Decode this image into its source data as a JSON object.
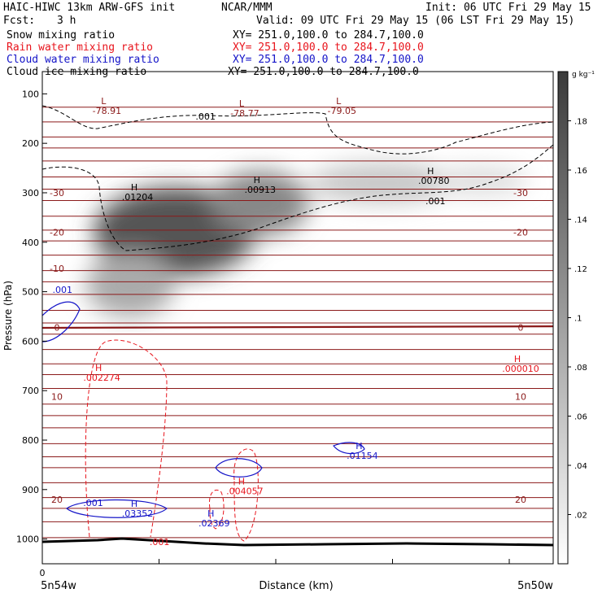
{
  "header": {
    "title": "HAIC-HIWC 13km ARW-GFS init",
    "source": "NCAR/MMM",
    "init": "Init: 06 UTC Fri 29 May 15",
    "fcst_label": "Fcst:",
    "fcst_value": "3 h",
    "valid": "Valid: 09 UTC Fri 29 May 15 (06 LST Fri 29 May 15)"
  },
  "fields": [
    {
      "name": "Snow mixing ratio",
      "xy": "XY= 251.0,100.0 to 284.7,100.0",
      "color": "#000000"
    },
    {
      "name": "Rain water mixing ratio",
      "xy": "XY= 251.0,100.0 to 284.7,100.0",
      "color": "#e8141c"
    },
    {
      "name": "Cloud water mixing ratio",
      "xy": "XY= 251.0,100.0 to 284.7,100.0",
      "color": "#1414c8"
    },
    {
      "name": "Cloud ice mixing ratio",
      "xy": "XY= 251.0,100.0 to 284.7,100.0",
      "color": "#000000"
    }
  ],
  "chart_data": {
    "type": "heatmap",
    "xlabel": "Distance (km)",
    "ylabel": "Pressure (hPa)",
    "x_tick_start": "0",
    "x_left_label": "5n54w",
    "x_right_label": "5n50w",
    "ylim": [
      1050,
      55
    ],
    "yticks": [
      100,
      200,
      300,
      400,
      500,
      600,
      700,
      800,
      900,
      1000
    ],
    "colorbar": {
      "unit_label": "g kg⁻¹",
      "range": [
        0,
        0.2
      ],
      "ticks": [
        ".02",
        ".04",
        ".06",
        ".08",
        ".1",
        ".12",
        ".14",
        ".16",
        ".18"
      ]
    },
    "temperature_labels": [
      {
        "text": "-30",
        "p": 300,
        "side": "both"
      },
      {
        "text": "-20",
        "p": 380,
        "side": "both"
      },
      {
        "text": "-10",
        "p": 453,
        "side": "left"
      },
      {
        "text": "0",
        "p": 572,
        "side": "both"
      },
      {
        "text": "10",
        "p": 712,
        "side": "both"
      },
      {
        "text": "20",
        "p": 920,
        "side": "both"
      }
    ],
    "annotations": [
      {
        "text": "L",
        "value": "-78.91",
        "x": 0.12,
        "p": 121,
        "color": "#8b1a1a"
      },
      {
        "text": "L",
        "value": "-78.77",
        "x": 0.39,
        "p": 126,
        "color": "#8b1a1a"
      },
      {
        "text": "L",
        "value": "-79.05",
        "x": 0.58,
        "p": 121,
        "color": "#8b1a1a"
      },
      {
        "text": "H",
        "value": ".01204",
        "x": 0.18,
        "p": 295,
        "color": "#000000"
      },
      {
        "text": "H",
        "value": ".00913",
        "x": 0.42,
        "p": 280,
        "color": "#000000"
      },
      {
        "text": "H",
        "value": ".00780",
        "x": 0.76,
        "p": 262,
        "color": "#000000"
      },
      {
        "text": "H",
        "value": ".002274",
        "x": 0.11,
        "p": 660,
        "color": "#e8141c"
      },
      {
        "text": "H",
        "value": ".000010",
        "x": 0.93,
        "p": 642,
        "color": "#e8141c"
      },
      {
        "text": "H",
        "value": ".004057",
        "x": 0.39,
        "p": 890,
        "color": "#e8141c"
      },
      {
        "text": "H",
        "value": ".01154",
        "x": 0.62,
        "p": 818,
        "color": "#1414c8"
      },
      {
        "text": "H",
        "value": ".03352",
        "x": 0.18,
        "p": 935,
        "color": "#1414c8"
      },
      {
        "text": "H",
        "value": ".02369",
        "x": 0.33,
        "p": 955,
        "color": "#1414c8"
      }
    ],
    "contour_labels": [
      {
        "text": ".001",
        "x": 0.3,
        "p": 152,
        "color": "#000000"
      },
      {
        "text": ".001",
        "x": 0.75,
        "p": 323,
        "color": "#000000"
      },
      {
        "text": ".001",
        "x": 0.02,
        "p": 502,
        "color": "#1414c8"
      },
      {
        "text": ".001",
        "x": 0.08,
        "p": 933,
        "color": "#1414c8"
      },
      {
        "text": ".001",
        "x": 0.21,
        "p": 1012,
        "color": "#e8141c"
      }
    ]
  }
}
